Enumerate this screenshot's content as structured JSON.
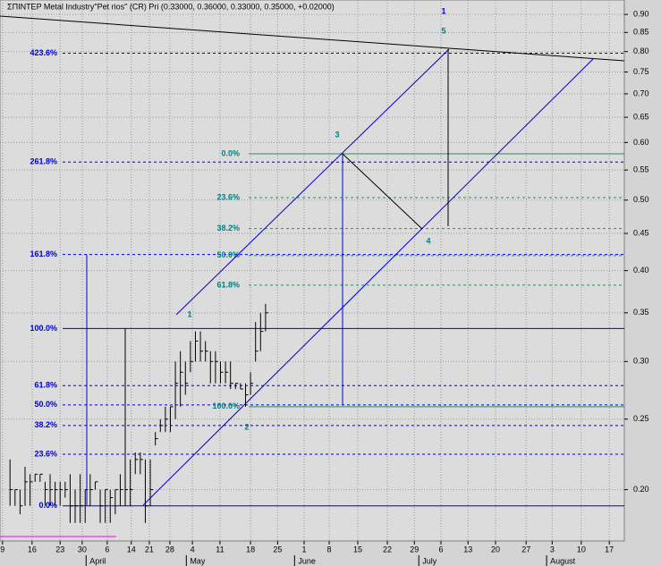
{
  "chart_data": {
    "type": "ohlc",
    "title": "ΣΠΙΝΤΕΡ Metal Industry\"Pet rios\" (CR) Pri (0.33000, 0.36000, 0.33000, 0.35000, +0.02000)",
    "log_scale": true,
    "grid": true,
    "bar_color": "#000000",
    "ylim": [
      0.17,
      0.942
    ],
    "yticks": [
      {
        "value": 0.9,
        "label": "0.90"
      },
      {
        "value": 0.85,
        "label": "0.85"
      },
      {
        "value": 0.8,
        "label": "0.80"
      },
      {
        "value": 0.75,
        "label": "0.75"
      },
      {
        "value": 0.7,
        "label": "0.70"
      },
      {
        "value": 0.65,
        "label": "0.65"
      },
      {
        "value": 0.6,
        "label": "0.60"
      },
      {
        "value": 0.55,
        "label": "0.55"
      },
      {
        "value": 0.5,
        "label": "0.50"
      },
      {
        "value": 0.45,
        "label": "0.45"
      },
      {
        "value": 0.4,
        "label": "0.40"
      },
      {
        "value": 0.35,
        "label": "0.35"
      },
      {
        "value": 0.3,
        "label": "0.30"
      },
      {
        "value": 0.25,
        "label": "0.25"
      },
      {
        "value": 0.2,
        "label": "0.20"
      }
    ],
    "xlim": [
      0,
      124.6
    ],
    "xticks": [
      {
        "value": 0.5,
        "label": "9"
      },
      {
        "value": 6.4,
        "label": "16"
      },
      {
        "value": 12,
        "label": "23"
      },
      {
        "value": 16.4,
        "label": "30"
      },
      {
        "value": 21.4,
        "label": "6"
      },
      {
        "value": 26.2,
        "label": "14"
      },
      {
        "value": 29.8,
        "label": "21"
      },
      {
        "value": 33.9,
        "label": "28"
      },
      {
        "value": 38.4,
        "label": "4"
      },
      {
        "value": 43.9,
        "label": "11"
      },
      {
        "value": 50,
        "label": "18"
      },
      {
        "value": 55.4,
        "label": "25"
      },
      {
        "value": 60.7,
        "label": "1"
      },
      {
        "value": 65.7,
        "label": "8"
      },
      {
        "value": 71.4,
        "label": "15"
      },
      {
        "value": 77.3,
        "label": "22"
      },
      {
        "value": 82.7,
        "label": "29"
      },
      {
        "value": 88,
        "label": "6"
      },
      {
        "value": 93.4,
        "label": "13"
      },
      {
        "value": 98.9,
        "label": "20"
      },
      {
        "value": 105,
        "label": "27"
      },
      {
        "value": 110.2,
        "label": "3"
      },
      {
        "value": 116,
        "label": "10"
      },
      {
        "value": 121.6,
        "label": "17"
      }
    ],
    "month_labels": [
      {
        "value": 17.9,
        "label": "April"
      },
      {
        "value": 37.9,
        "label": "May"
      },
      {
        "value": 59.5,
        "label": "June"
      },
      {
        "value": 84.3,
        "label": "July"
      },
      {
        "value": 109.8,
        "label": "August"
      }
    ],
    "bars": {
      "x": [
        2,
        3,
        4,
        5,
        6,
        7,
        8,
        9,
        10,
        11,
        12,
        13,
        14,
        15,
        16,
        17,
        18,
        19,
        20,
        21,
        22,
        23,
        24,
        25,
        26,
        27,
        28,
        29,
        30,
        31,
        32,
        33,
        34,
        35,
        36,
        37,
        38,
        39,
        40,
        41,
        42,
        43,
        44,
        45,
        46,
        47,
        48,
        49,
        50,
        51,
        52,
        53
      ],
      "high": [
        0.22,
        0.2,
        0.2,
        0.215,
        0.21,
        0.21,
        0.21,
        0.205,
        0.21,
        0.205,
        0.205,
        0.205,
        0.21,
        0.2,
        0.21,
        0.2,
        0.21,
        0.205,
        0.2,
        0.2,
        0.2,
        0.2,
        0.21,
        0.21,
        0.22,
        0.225,
        0.225,
        0.22,
        0.22,
        0.24,
        0.25,
        0.26,
        0.26,
        0.3,
        0.31,
        0.3,
        0.32,
        0.33,
        0.33,
        0.32,
        0.31,
        0.31,
        0.3,
        0.3,
        0.3,
        0.28,
        0.28,
        0.28,
        0.29,
        0.34,
        0.35,
        0.36
      ],
      "low": [
        0.19,
        0.19,
        0.185,
        0.19,
        0.19,
        0.205,
        0.205,
        0.19,
        0.19,
        0.19,
        0.19,
        0.195,
        0.18,
        0.18,
        0.18,
        0.18,
        0.19,
        0.2,
        0.18,
        0.18,
        0.18,
        0.185,
        0.19,
        0.19,
        0.19,
        0.21,
        0.21,
        0.18,
        0.19,
        0.23,
        0.24,
        0.24,
        0.24,
        0.25,
        0.26,
        0.27,
        0.29,
        0.3,
        0.3,
        0.3,
        0.28,
        0.28,
        0.28,
        0.28,
        0.275,
        0.275,
        0.275,
        0.26,
        0.27,
        0.3,
        0.31,
        0.33
      ],
      "close": [
        0.2,
        0.2,
        0.19,
        0.205,
        0.205,
        0.21,
        0.21,
        0.2,
        0.2,
        0.2,
        0.2,
        0.2,
        0.19,
        0.19,
        0.19,
        0.2,
        0.2,
        0.205,
        0.19,
        0.2,
        0.195,
        0.2,
        0.2,
        0.2,
        0.2,
        0.22,
        0.22,
        0.19,
        0.2,
        0.235,
        0.245,
        0.25,
        0.26,
        0.28,
        0.29,
        0.28,
        0.3,
        0.32,
        0.31,
        0.31,
        0.3,
        0.3,
        0.29,
        0.29,
        0.28,
        0.28,
        0.275,
        0.27,
        0.28,
        0.31,
        0.33,
        0.35
      ]
    },
    "fib_left": {
      "color": "#0000cc",
      "levels": [
        {
          "value": 0.796,
          "label": "423.6%",
          "style": "dashed"
        },
        {
          "value": 0.564,
          "label": "261.8%",
          "style": "dashed"
        },
        {
          "value": 0.421,
          "label": "161.8%",
          "style": "dashed"
        },
        {
          "value": 0.333,
          "label": "100.0%",
          "style": "solid"
        },
        {
          "value": 0.278,
          "label": "61.8%",
          "style": "dashed"
        },
        {
          "value": 0.2615,
          "label": "50.0%",
          "style": "dashed"
        },
        {
          "value": 0.245,
          "label": "38.2%",
          "style": "dashed"
        },
        {
          "value": 0.2237,
          "label": "23.6%",
          "style": "dashed"
        },
        {
          "value": 0.19,
          "label": "0.0%",
          "style": "solid"
        }
      ]
    },
    "fib_right": {
      "color": "#2e8b57",
      "label_color": "#008080",
      "levels": [
        {
          "value": 0.579,
          "label": "0.0%",
          "style": "solid"
        },
        {
          "value": 0.504,
          "label": "23.6%",
          "style": "dashed"
        },
        {
          "value": 0.457,
          "label": "38.2%",
          "style": "dashed"
        },
        {
          "value": 0.4195,
          "label": "50.0%",
          "style": "dashed"
        },
        {
          "value": 0.382,
          "label": "61.8%",
          "style": "dashed"
        },
        {
          "value": 0.26,
          "label": "100.0%",
          "style": "solid"
        }
      ]
    },
    "wave_labels": [
      "1",
      "5",
      "3",
      "4",
      "1",
      "2"
    ]
  }
}
